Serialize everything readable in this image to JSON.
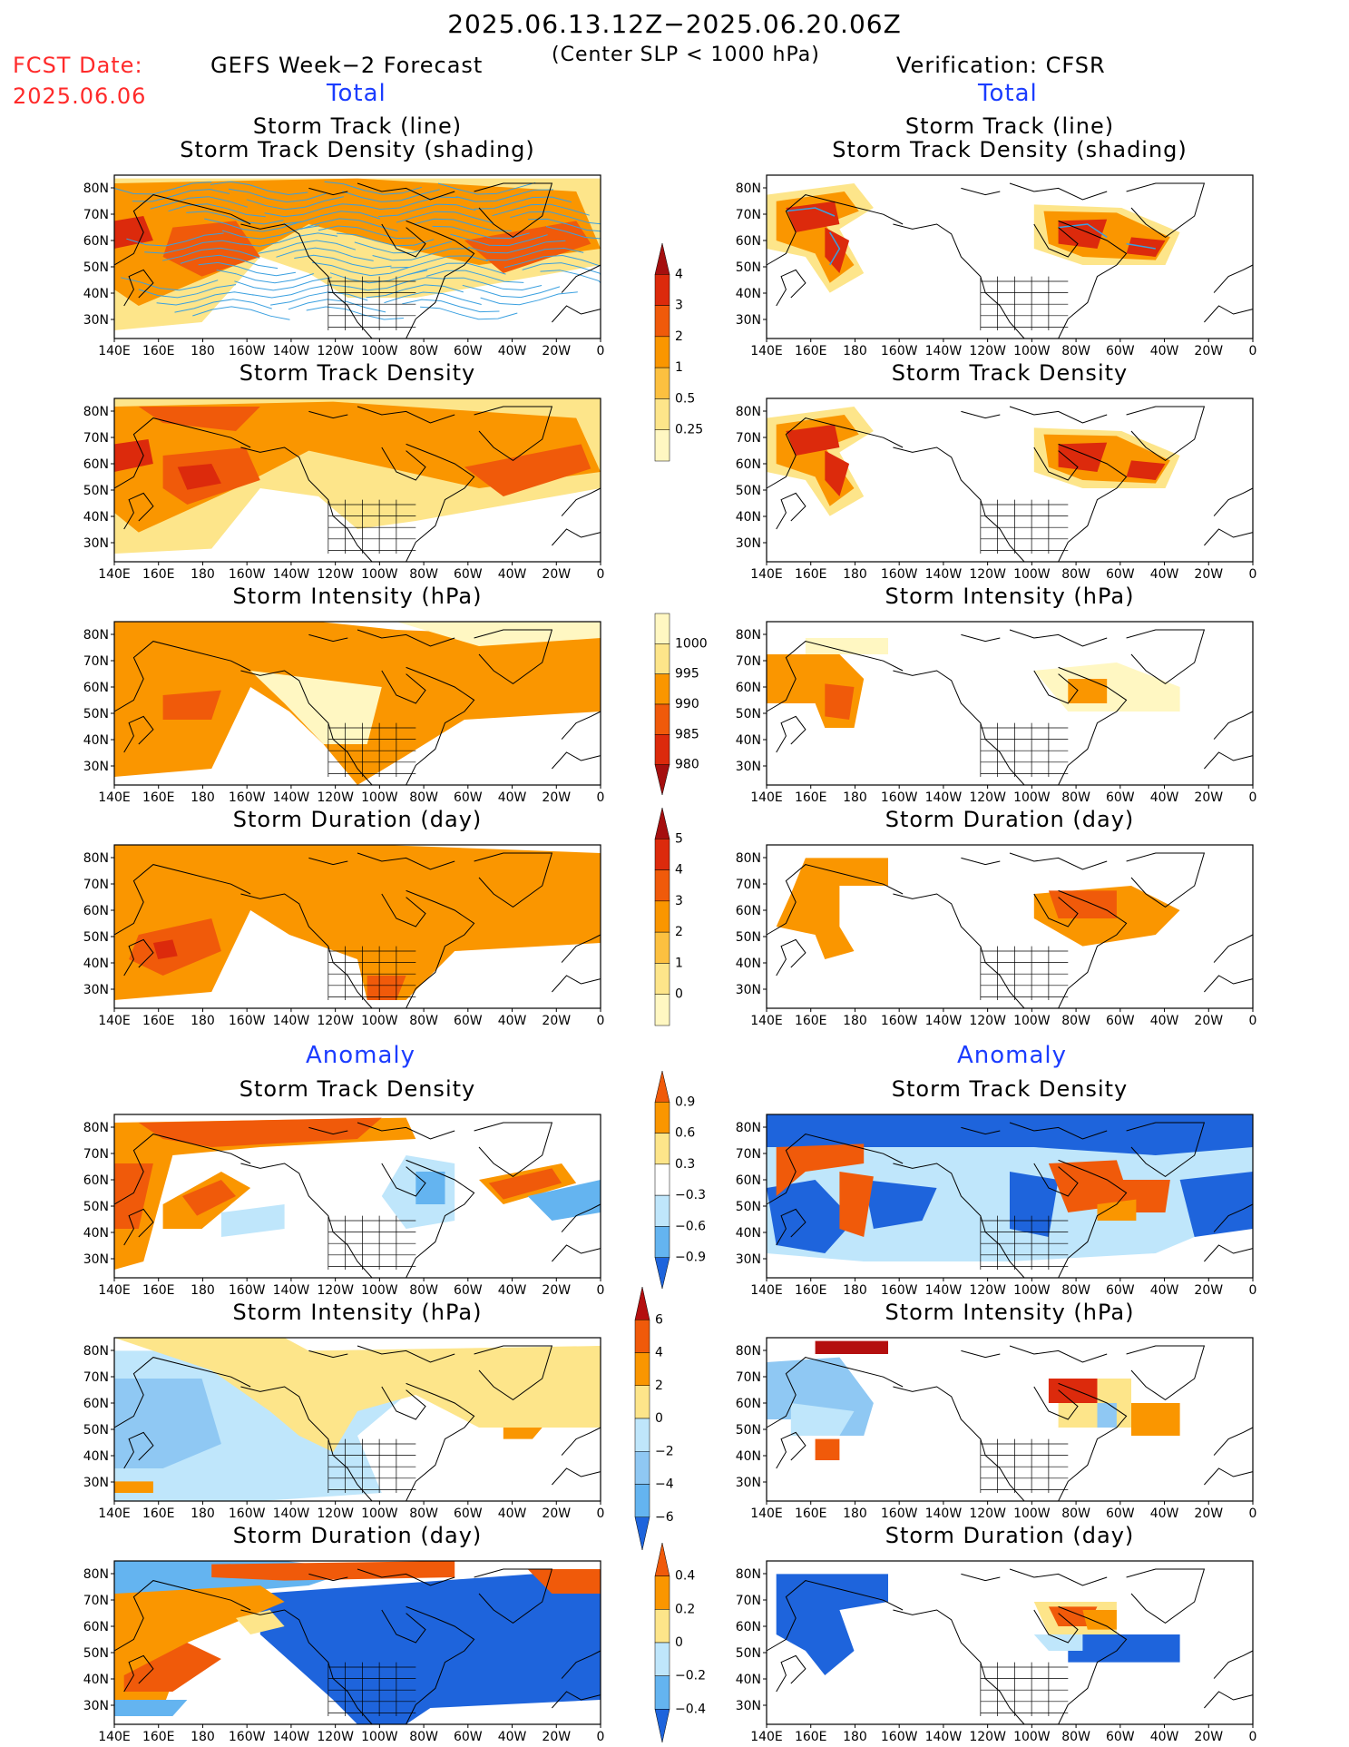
{
  "header": {
    "date_range": "2025.06.13.12Z−2025.06.20.06Z",
    "criterion": "(Center SLP < 1000 hPa)",
    "fcst_label": "FCST Date:",
    "fcst_date": "2025.06.06",
    "left_model": "GEFS Week−2 Forecast",
    "right_model": "Verification: CFSR",
    "left_section": "Total",
    "right_section": "Total",
    "left_anomaly": "Anomaly",
    "right_anomaly": "Anomaly"
  },
  "axes": {
    "lon_labels": [
      "140E",
      "160E",
      "180",
      "160W",
      "140W",
      "120W",
      "100W",
      "80W",
      "60W",
      "40W",
      "20W",
      "0"
    ],
    "lat_labels": [
      "80N",
      "70N",
      "60N",
      "50N",
      "40N",
      "30N"
    ]
  },
  "panels": [
    {
      "id": "track-left",
      "title_line1": "Storm Track (line)",
      "title_line2": "Storm Track Density (shading)",
      "column": "left",
      "kind": "density"
    },
    {
      "id": "track-right",
      "title_line1": "Storm Track (line)",
      "title_line2": "Storm Track Density (shading)",
      "column": "right",
      "kind": "density"
    },
    {
      "id": "density-left",
      "title_line1": "Storm Track Density",
      "column": "left",
      "kind": "density"
    },
    {
      "id": "density-right",
      "title_line1": "Storm Track Density",
      "column": "right",
      "kind": "density"
    },
    {
      "id": "intensity-left",
      "title_line1": "Storm Intensity (hPa)",
      "column": "left",
      "kind": "intensity"
    },
    {
      "id": "intensity-right",
      "title_line1": "Storm Intensity (hPa)",
      "column": "right",
      "kind": "intensity"
    },
    {
      "id": "duration-left",
      "title_line1": "Storm Duration (day)",
      "column": "left",
      "kind": "duration"
    },
    {
      "id": "duration-right",
      "title_line1": "Storm Duration (day)",
      "column": "right",
      "kind": "duration"
    },
    {
      "id": "anom-density-left",
      "title_line1": "Storm Track Density",
      "column": "left",
      "kind": "anom_density"
    },
    {
      "id": "anom-density-right",
      "title_line1": "Storm Track Density",
      "column": "right",
      "kind": "anom_density"
    },
    {
      "id": "anom-intensity-left",
      "title_line1": "Storm Intensity (hPa)",
      "column": "left",
      "kind": "anom_intensity"
    },
    {
      "id": "anom-intensity-right",
      "title_line1": "Storm Intensity (hPa)",
      "column": "right",
      "kind": "anom_intensity"
    },
    {
      "id": "anom-duration-left",
      "title_line1": "Storm Duration (day)",
      "column": "left",
      "kind": "anom_duration"
    },
    {
      "id": "anom-duration-right",
      "title_line1": "Storm Duration (day)",
      "column": "right",
      "kind": "anom_duration"
    }
  ],
  "colorbars": [
    {
      "id": "cb-density",
      "labels": [
        "4",
        "3",
        "2",
        "1",
        "0.5",
        "0.25"
      ],
      "colors": [
        "#a50f0f",
        "#dc2a0c",
        "#f05a0a",
        "#fa9600",
        "#fcc040",
        "#fde58a",
        "#fff7c2"
      ]
    },
    {
      "id": "cb-intensity",
      "labels": [
        "1000",
        "995",
        "990",
        "985",
        "980"
      ],
      "colors": [
        "#fff7c2",
        "#fde58a",
        "#fa9600",
        "#f05a0a",
        "#dc2a0c",
        "#a50f0f"
      ]
    },
    {
      "id": "cb-duration",
      "labels": [
        "5",
        "4",
        "3",
        "2",
        "1",
        "0"
      ],
      "colors": [
        "#a50f0f",
        "#dc2a0c",
        "#f05a0a",
        "#fa9600",
        "#fcc040",
        "#fde58a",
        "#fff7c2"
      ]
    },
    {
      "id": "cb-anom-density",
      "labels": [
        "0.9",
        "0.6",
        "0.3",
        "−0.3",
        "−0.6",
        "−0.9"
      ],
      "colors": [
        "#f05a0a",
        "#fa9600",
        "#fde58a",
        "#ffffff",
        "#bfe6fb",
        "#64b4f0",
        "#1e64dc"
      ]
    },
    {
      "id": "cb-anom-intensity",
      "labels": [
        "6",
        "4",
        "2",
        "0",
        "−2",
        "−4",
        "−6"
      ],
      "colors": [
        "#b40f0f",
        "#f05a0a",
        "#fa9600",
        "#fde58a",
        "#bfe6fb",
        "#8fc8f3",
        "#64b4f0",
        "#1e64dc"
      ]
    },
    {
      "id": "cb-anom-duration",
      "labels": [
        "0.4",
        "0.2",
        "0",
        "−0.2",
        "−0.4"
      ],
      "colors": [
        "#f05a0a",
        "#fa9600",
        "#fde58a",
        "#bfe6fb",
        "#64b4f0",
        "#1e64dc"
      ]
    }
  ]
}
